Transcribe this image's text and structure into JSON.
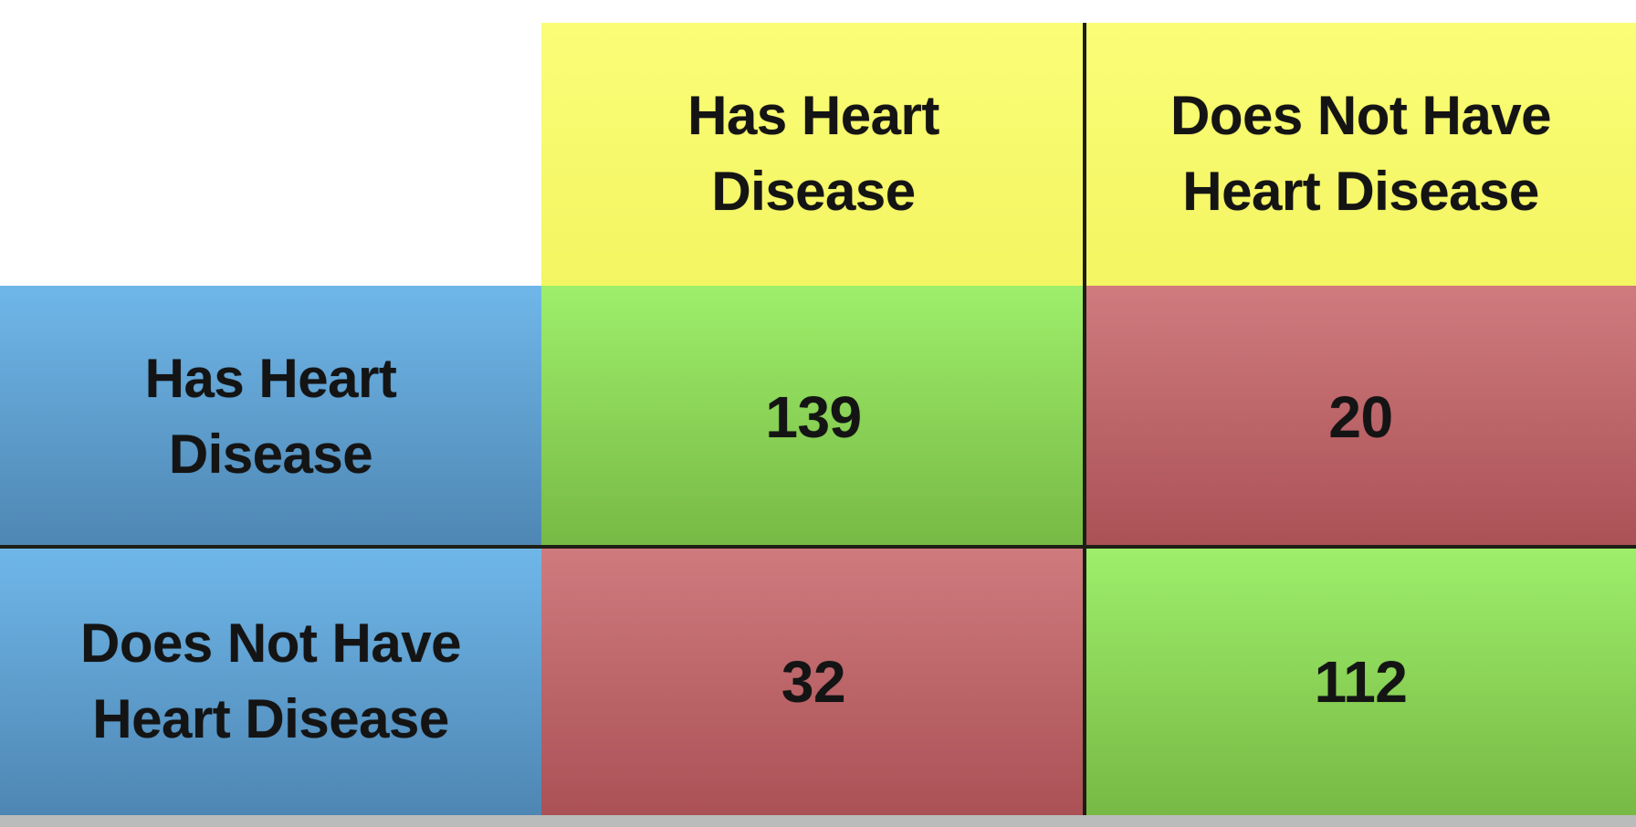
{
  "slide": {
    "col_headers": [
      {
        "label": "Has Heart Disease",
        "line1": "Has Heart",
        "line2": "Disease"
      },
      {
        "label": "Does Not Have Heart Disease",
        "line1": "Does Not Have",
        "line2": "Heart Disease"
      }
    ],
    "row_headers": [
      {
        "label": "Has Heart Disease",
        "line1": "Has Heart",
        "line2": "Disease"
      },
      {
        "label": "Does Not Have Heart Disease",
        "line1": "Does Not Have",
        "line2": "Heart Disease"
      }
    ]
  },
  "chart_data": {
    "type": "table",
    "columns": [
      "Has Heart Disease",
      "Does Not Have Heart Disease"
    ],
    "rows": [
      "Has Heart Disease",
      "Does Not Have Heart Disease"
    ],
    "values": [
      [
        139,
        20
      ],
      [
        32,
        112
      ]
    ]
  },
  "colors": {
    "header_yellow": "#f8fa6e",
    "row_header_blue": "#60a9dc",
    "match_green": "#8bd356",
    "mismatch_red": "#c16b6f",
    "grid_line": "#1e1e14",
    "bottom_bar_gray": "#b9bcba",
    "background": "#ffffff",
    "text": "#141414"
  }
}
